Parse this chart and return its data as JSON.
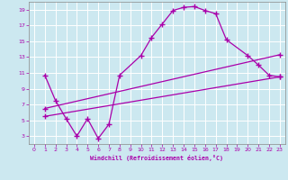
{
  "xlabel": "Windchill (Refroidissement éolien,°C)",
  "bg_color": "#cce8f0",
  "line_color": "#aa00aa",
  "grid_color": "#ffffff",
  "xlim": [
    -0.5,
    23.5
  ],
  "ylim": [
    2,
    20
  ],
  "xticks": [
    0,
    1,
    2,
    3,
    4,
    5,
    6,
    7,
    8,
    9,
    10,
    11,
    12,
    13,
    14,
    15,
    16,
    17,
    18,
    19,
    20,
    21,
    22,
    23
  ],
  "yticks": [
    3,
    5,
    7,
    9,
    11,
    13,
    15,
    17,
    19
  ],
  "s1x": [
    1,
    2,
    3,
    4,
    5,
    6,
    7,
    8,
    10,
    11,
    12,
    13,
    14,
    15,
    16,
    17,
    18,
    20,
    21,
    22,
    23
  ],
  "s1y": [
    10.7,
    7.5,
    5.2,
    3.0,
    5.2,
    2.7,
    4.5,
    10.7,
    13.2,
    15.5,
    17.2,
    18.9,
    19.3,
    19.4,
    18.9,
    18.5,
    15.2,
    13.2,
    12.0,
    10.7,
    10.5
  ],
  "s2x": [
    1,
    23
  ],
  "s2y": [
    6.5,
    13.3
  ],
  "s3x": [
    1,
    23
  ],
  "s3y": [
    5.5,
    10.5
  ]
}
